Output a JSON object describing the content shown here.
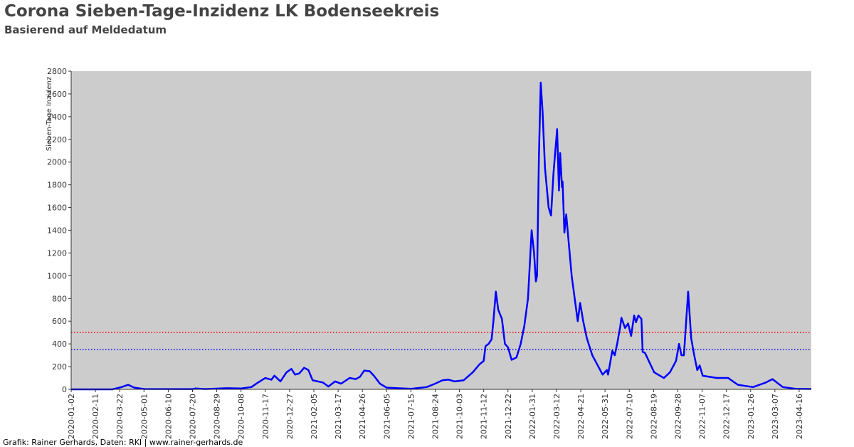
{
  "chart_data": {
    "type": "line",
    "title": "Corona Sieben-Tage-Inzidenz LK Bodenseekreis",
    "subtitle": "Basierend auf Meldedatum",
    "y_label": "Sieben-Tage Inzidenz",
    "footer": "Grafik: Rainer Gerhards, Daten: RKI | www.rainer-gerhards.de",
    "xlim": [
      "2020-01-02",
      "2023-05-06"
    ],
    "ylim": [
      0,
      2800
    ],
    "yticks": [
      0,
      200,
      400,
      600,
      800,
      1000,
      1200,
      1400,
      1600,
      1800,
      2000,
      2200,
      2400,
      2600,
      2800
    ],
    "xticks": [
      "2020-01-02",
      "2020-02-11",
      "2020-03-22",
      "2020-05-01",
      "2020-06-10",
      "2020-07-20",
      "2020-08-29",
      "2020-10-08",
      "2020-11-17",
      "2020-12-27",
      "2021-02-05",
      "2021-03-17",
      "2021-04-26",
      "2021-06-05",
      "2021-07-15",
      "2021-08-24",
      "2021-10-03",
      "2021-11-12",
      "2021-12-22",
      "2022-01-31",
      "2022-03-12",
      "2022-04-21",
      "2022-05-31",
      "2022-07-10",
      "2022-08-19",
      "2022-09-28",
      "2022-11-07",
      "2022-12-17",
      "2023-01-26",
      "2023-03-07",
      "2023-04-16"
    ],
    "reference_lines": [
      {
        "value": 500,
        "color": "#ff0000"
      },
      {
        "value": 350,
        "color": "#0000ff"
      }
    ],
    "background": "#cccccc",
    "x": [
      "2020-01-02",
      "2020-03-10",
      "2020-03-25",
      "2020-04-05",
      "2020-04-15",
      "2020-05-01",
      "2020-07-20",
      "2020-07-25",
      "2020-08-10",
      "2020-09-15",
      "2020-10-08",
      "2020-10-25",
      "2020-11-05",
      "2020-11-17",
      "2020-11-27",
      "2020-12-02",
      "2020-12-12",
      "2020-12-22",
      "2020-12-30",
      "2021-01-05",
      "2021-01-12",
      "2021-01-20",
      "2021-01-27",
      "2021-02-03",
      "2021-02-20",
      "2021-03-01",
      "2021-03-12",
      "2021-03-22",
      "2021-04-05",
      "2021-04-15",
      "2021-04-22",
      "2021-04-29",
      "2021-05-08",
      "2021-05-15",
      "2021-05-25",
      "2021-06-05",
      "2021-07-15",
      "2021-08-10",
      "2021-08-24",
      "2021-09-05",
      "2021-09-15",
      "2021-09-25",
      "2021-10-10",
      "2021-10-25",
      "2021-11-05",
      "2021-11-12",
      "2021-11-15",
      "2021-11-20",
      "2021-11-25",
      "2021-11-28",
      "2021-12-02",
      "2021-12-06",
      "2021-12-12",
      "2021-12-17",
      "2021-12-22",
      "2021-12-28",
      "2022-01-05",
      "2022-01-12",
      "2022-01-18",
      "2022-01-24",
      "2022-01-30",
      "2022-02-03",
      "2022-02-06",
      "2022-02-08",
      "2022-02-11",
      "2022-02-14",
      "2022-02-17",
      "2022-02-21",
      "2022-02-27",
      "2022-03-03",
      "2022-03-07",
      "2022-03-13",
      "2022-03-16",
      "2022-03-18",
      "2022-03-21",
      "2022-03-22",
      "2022-03-25",
      "2022-03-28",
      "2022-04-01",
      "2022-04-06",
      "2022-04-12",
      "2022-04-16",
      "2022-04-20",
      "2022-04-25",
      "2022-05-01",
      "2022-05-10",
      "2022-05-20",
      "2022-05-27",
      "2022-06-03",
      "2022-06-05",
      "2022-06-12",
      "2022-06-16",
      "2022-06-20",
      "2022-06-25",
      "2022-06-27",
      "2022-07-03",
      "2022-07-08",
      "2022-07-13",
      "2022-07-18",
      "2022-07-21",
      "2022-07-25",
      "2022-07-30",
      "2022-08-01",
      "2022-08-05",
      "2022-08-12",
      "2022-08-20",
      "2022-09-05",
      "2022-09-15",
      "2022-09-25",
      "2022-09-30",
      "2022-10-04",
      "2022-10-08",
      "2022-10-15",
      "2022-10-20",
      "2022-10-25",
      "2022-10-30",
      "2022-11-03",
      "2022-11-08",
      "2022-12-01",
      "2022-12-20",
      "2023-01-05",
      "2023-01-30",
      "2023-02-20",
      "2023-03-03",
      "2023-03-20",
      "2023-04-10",
      "2023-05-06"
    ],
    "series": [
      {
        "name": "Sieben-Tage Inzidenz",
        "color": "#0000ff",
        "values": [
          0,
          0,
          20,
          40,
          15,
          3,
          2,
          8,
          2,
          10,
          8,
          20,
          60,
          100,
          85,
          120,
          70,
          150,
          180,
          130,
          140,
          190,
          170,
          80,
          60,
          25,
          70,
          50,
          100,
          90,
          110,
          165,
          160,
          120,
          50,
          15,
          5,
          20,
          50,
          80,
          85,
          70,
          80,
          150,
          220,
          250,
          380,
          400,
          440,
          600,
          860,
          700,
          620,
          400,
          370,
          260,
          280,
          400,
          560,
          800,
          1400,
          1200,
          950,
          1000,
          2050,
          2700,
          2450,
          1950,
          1600,
          1530,
          1900,
          2290,
          1750,
          2080,
          1780,
          1830,
          1380,
          1540,
          1300,
          1000,
          760,
          600,
          760,
          600,
          450,
          300,
          200,
          130,
          170,
          130,
          340,
          300,
          400,
          550,
          630,
          540,
          580,
          470,
          650,
          590,
          650,
          620,
          330,
          320,
          240,
          150,
          100,
          150,
          250,
          400,
          300,
          300,
          860,
          450,
          300,
          170,
          210,
          120,
          100,
          100,
          40,
          20,
          60,
          90,
          20,
          5,
          3
        ]
      }
    ]
  }
}
